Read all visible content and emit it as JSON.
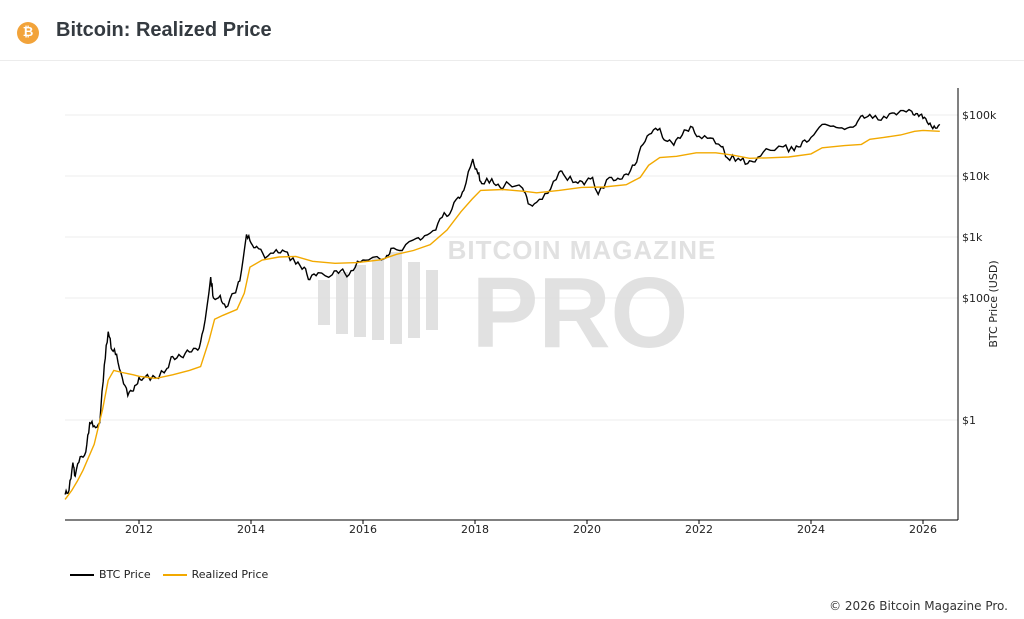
{
  "header": {
    "title": "Bitcoin: Realized Price",
    "logo_icon": "bitcoin-icon",
    "logo_glyph": "₿"
  },
  "footer": {
    "copyright": "© 2026 Bitcoin Magazine Pro."
  },
  "watermark": {
    "line1": "BITCOIN MAGAZINE",
    "line2": "PRO"
  },
  "colors": {
    "btc": "#000000",
    "realized": "#f2a900",
    "grid": "#ececec"
  },
  "chart_data": {
    "type": "line",
    "title": "Bitcoin: Realized Price",
    "xlabel": "",
    "ylabel": "BTC Price (USD)",
    "yscale": "log",
    "xlim": [
      2010.68,
      2026.6
    ],
    "ylim": [
      0.023,
      280000
    ],
    "x_ticks": [
      2012,
      2014,
      2016,
      2018,
      2020,
      2022,
      2024,
      2026
    ],
    "y_ticks": [
      {
        "v": 100000,
        "label": "$100k"
      },
      {
        "v": 10000,
        "label": "$10k"
      },
      {
        "v": 1000,
        "label": "$1k"
      },
      {
        "v": 100,
        "label": "$100"
      },
      {
        "v": 1,
        "label": "$1"
      }
    ],
    "legend": "bottom-left",
    "series": [
      {
        "name": "BTC Price",
        "color": "#000000",
        "points": [
          [
            2010.68,
            0.06
          ],
          [
            2010.75,
            0.07
          ],
          [
            2010.82,
            0.2
          ],
          [
            2010.86,
            0.12
          ],
          [
            2010.95,
            0.25
          ],
          [
            2011.05,
            0.3
          ],
          [
            2011.12,
            0.9
          ],
          [
            2011.2,
            0.8
          ],
          [
            2011.3,
            0.9
          ],
          [
            2011.38,
            8
          ],
          [
            2011.45,
            28
          ],
          [
            2011.52,
            14
          ],
          [
            2011.6,
            12
          ],
          [
            2011.7,
            5
          ],
          [
            2011.8,
            2.5
          ],
          [
            2011.9,
            3
          ],
          [
            2012.0,
            5
          ],
          [
            2012.1,
            5
          ],
          [
            2012.3,
            4.9
          ],
          [
            2012.5,
            7
          ],
          [
            2012.6,
            11
          ],
          [
            2012.75,
            11
          ],
          [
            2012.9,
            13
          ],
          [
            2013.05,
            14
          ],
          [
            2013.15,
            30
          ],
          [
            2013.28,
            220
          ],
          [
            2013.33,
            100
          ],
          [
            2013.45,
            110
          ],
          [
            2013.55,
            70
          ],
          [
            2013.7,
            120
          ],
          [
            2013.8,
            190
          ],
          [
            2013.92,
            1100
          ],
          [
            2014.0,
            800
          ],
          [
            2014.1,
            700
          ],
          [
            2014.25,
            450
          ],
          [
            2014.45,
            620
          ],
          [
            2014.6,
            580
          ],
          [
            2014.8,
            360
          ],
          [
            2014.95,
            320
          ],
          [
            2015.05,
            200
          ],
          [
            2015.2,
            260
          ],
          [
            2015.45,
            240
          ],
          [
            2015.6,
            280
          ],
          [
            2015.75,
            240
          ],
          [
            2015.9,
            400
          ],
          [
            2016.1,
            420
          ],
          [
            2016.4,
            450
          ],
          [
            2016.5,
            650
          ],
          [
            2016.7,
            600
          ],
          [
            2016.95,
            950
          ],
          [
            2017.1,
            1050
          ],
          [
            2017.3,
            1300
          ],
          [
            2017.45,
            2500
          ],
          [
            2017.55,
            2400
          ],
          [
            2017.7,
            4500
          ],
          [
            2017.8,
            5800
          ],
          [
            2017.96,
            19000
          ],
          [
            2018.05,
            11000
          ],
          [
            2018.12,
            7500
          ],
          [
            2018.3,
            9000
          ],
          [
            2018.45,
            6500
          ],
          [
            2018.6,
            7500
          ],
          [
            2018.85,
            6300
          ],
          [
            2018.95,
            3500
          ],
          [
            2019.1,
            3700
          ],
          [
            2019.3,
            5200
          ],
          [
            2019.5,
            11500
          ],
          [
            2019.6,
            10000
          ],
          [
            2019.8,
            8000
          ],
          [
            2019.95,
            7200
          ],
          [
            2020.1,
            9500
          ],
          [
            2020.2,
            5000
          ],
          [
            2020.4,
            9500
          ],
          [
            2020.55,
            9200
          ],
          [
            2020.7,
            10800
          ],
          [
            2020.85,
            15000
          ],
          [
            2021.0,
            33000
          ],
          [
            2021.15,
            50000
          ],
          [
            2021.3,
            60000
          ],
          [
            2021.4,
            38000
          ],
          [
            2021.55,
            32000
          ],
          [
            2021.7,
            47000
          ],
          [
            2021.85,
            65000
          ],
          [
            2022.0,
            45000
          ],
          [
            2022.2,
            42000
          ],
          [
            2022.4,
            30000
          ],
          [
            2022.5,
            20000
          ],
          [
            2022.7,
            19500
          ],
          [
            2022.87,
            16000
          ],
          [
            2023.0,
            17000
          ],
          [
            2023.2,
            28000
          ],
          [
            2023.5,
            30000
          ],
          [
            2023.7,
            26000
          ],
          [
            2023.85,
            37000
          ],
          [
            2024.0,
            43000
          ],
          [
            2024.2,
            70000
          ],
          [
            2024.4,
            66000
          ],
          [
            2024.6,
            58000
          ],
          [
            2024.8,
            68000
          ],
          [
            2024.92,
            98000
          ],
          [
            2025.05,
            102000
          ],
          [
            2025.25,
            82000
          ],
          [
            2025.45,
            108000
          ],
          [
            2025.6,
            118000
          ],
          [
            2025.8,
            115000
          ],
          [
            2025.9,
            105000
          ],
          [
            2026.0,
            88000
          ],
          [
            2026.1,
            70000
          ],
          [
            2026.2,
            66000
          ],
          [
            2026.3,
            70000
          ]
        ]
      },
      {
        "name": "Realized Price",
        "color": "#f2a900",
        "points": [
          [
            2010.68,
            0.05
          ],
          [
            2010.8,
            0.07
          ],
          [
            2010.9,
            0.1
          ],
          [
            2011.0,
            0.15
          ],
          [
            2011.2,
            0.4
          ],
          [
            2011.35,
            1.5
          ],
          [
            2011.45,
            4.5
          ],
          [
            2011.55,
            6.5
          ],
          [
            2011.7,
            6
          ],
          [
            2011.9,
            5.5
          ],
          [
            2012.0,
            5.2
          ],
          [
            2012.3,
            4.8
          ],
          [
            2012.6,
            5.5
          ],
          [
            2012.9,
            6.5
          ],
          [
            2013.1,
            7.5
          ],
          [
            2013.25,
            20
          ],
          [
            2013.35,
            45
          ],
          [
            2013.5,
            52
          ],
          [
            2013.75,
            65
          ],
          [
            2013.88,
            120
          ],
          [
            2013.98,
            320
          ],
          [
            2014.2,
            420
          ],
          [
            2014.5,
            470
          ],
          [
            2014.8,
            480
          ],
          [
            2015.1,
            400
          ],
          [
            2015.5,
            370
          ],
          [
            2015.9,
            380
          ],
          [
            2016.3,
            420
          ],
          [
            2016.6,
            520
          ],
          [
            2016.9,
            600
          ],
          [
            2017.2,
            750
          ],
          [
            2017.5,
            1300
          ],
          [
            2017.75,
            2600
          ],
          [
            2017.95,
            4200
          ],
          [
            2018.1,
            5800
          ],
          [
            2018.5,
            6000
          ],
          [
            2018.9,
            5600
          ],
          [
            2019.1,
            5300
          ],
          [
            2019.5,
            5800
          ],
          [
            2019.9,
            6500
          ],
          [
            2020.3,
            6600
          ],
          [
            2020.7,
            7200
          ],
          [
            2020.95,
            9500
          ],
          [
            2021.1,
            15000
          ],
          [
            2021.3,
            20000
          ],
          [
            2021.6,
            21000
          ],
          [
            2021.95,
            24000
          ],
          [
            2022.3,
            24000
          ],
          [
            2022.6,
            22000
          ],
          [
            2022.9,
            19500
          ],
          [
            2023.2,
            19800
          ],
          [
            2023.6,
            20500
          ],
          [
            2024.0,
            23000
          ],
          [
            2024.2,
            29000
          ],
          [
            2024.6,
            31500
          ],
          [
            2024.9,
            33000
          ],
          [
            2025.05,
            40000
          ],
          [
            2025.3,
            43000
          ],
          [
            2025.6,
            47000
          ],
          [
            2025.85,
            54000
          ],
          [
            2026.0,
            56000
          ],
          [
            2026.3,
            54000
          ]
        ]
      }
    ]
  }
}
